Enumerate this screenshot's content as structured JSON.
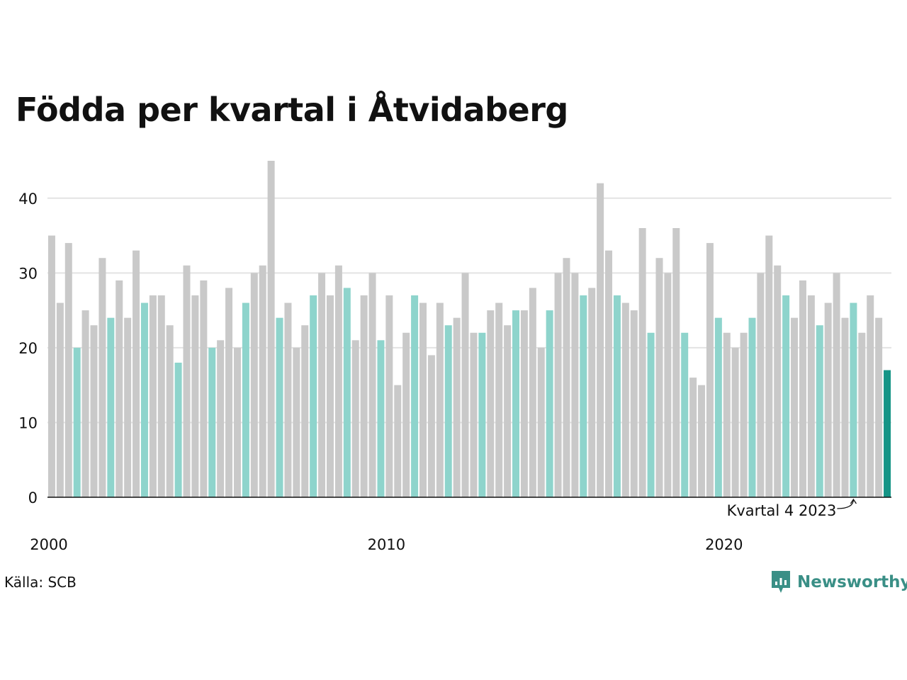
{
  "title": "Födda per kvartal i Åtvidaberg",
  "source": "Källa: SCB",
  "brand": {
    "name": "Newsworthy",
    "icon": "newsworthy-logo-icon",
    "color": "#3a8f86"
  },
  "annotation": {
    "text": "Kvartal 4 2023",
    "target_index": 95
  },
  "colors": {
    "default": "#c9c9c9",
    "q4": "#8ed4cc",
    "latest": "#169486",
    "grid": "#e3e3e3",
    "axis": "#111111"
  },
  "chart_data": {
    "type": "bar",
    "title": "Födda per kvartal i Åtvidaberg",
    "xlabel": "",
    "ylabel": "",
    "ylim": [
      0,
      45
    ],
    "yticks": [
      0,
      10,
      20,
      30,
      40
    ],
    "xticks": [
      {
        "label": "2000",
        "index": 0
      },
      {
        "label": "2010",
        "index": 40
      },
      {
        "label": "2020",
        "index": 80
      }
    ],
    "grid": true,
    "start_year": 2000,
    "start_quarter": 1,
    "values": [
      35,
      26,
      34,
      20,
      25,
      23,
      32,
      24,
      29,
      24,
      33,
      26,
      27,
      27,
      23,
      18,
      31,
      27,
      29,
      20,
      21,
      28,
      20,
      26,
      30,
      31,
      45,
      24,
      26,
      20,
      23,
      27,
      30,
      27,
      31,
      28,
      21,
      27,
      30,
      21,
      27,
      15,
      22,
      27,
      26,
      19,
      26,
      23,
      24,
      30,
      22,
      22,
      25,
      26,
      23,
      25,
      25,
      28,
      20,
      25,
      30,
      32,
      30,
      27,
      28,
      42,
      33,
      27,
      26,
      25,
      36,
      22,
      32,
      30,
      36,
      22,
      16,
      15,
      34,
      24,
      22,
      20,
      22,
      24,
      30,
      35,
      31,
      27,
      24,
      29,
      27,
      23,
      26,
      30,
      24,
      26,
      22,
      27,
      24,
      17
    ]
  }
}
